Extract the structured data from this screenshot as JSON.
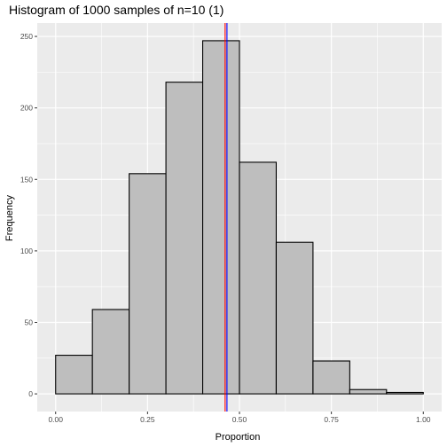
{
  "chart_data": {
    "type": "bar",
    "title": "Histogram of 1000 samples of n=10 (1)",
    "xlabel": "Proportion",
    "ylabel": "Frequency",
    "bins": [
      {
        "x0": 0.0,
        "x1": 0.1,
        "count": 27
      },
      {
        "x0": 0.1,
        "x1": 0.2,
        "count": 59
      },
      {
        "x0": 0.2,
        "x1": 0.3,
        "count": 154
      },
      {
        "x0": 0.3,
        "x1": 0.4,
        "count": 218
      },
      {
        "x0": 0.4,
        "x1": 0.5,
        "count": 247
      },
      {
        "x0": 0.5,
        "x1": 0.6,
        "count": 162
      },
      {
        "x0": 0.6,
        "x1": 0.7,
        "count": 106
      },
      {
        "x0": 0.7,
        "x1": 0.8,
        "count": 23
      },
      {
        "x0": 0.8,
        "x1": 0.9,
        "count": 3
      },
      {
        "x0": 0.9,
        "x1": 1.0,
        "count": 1
      }
    ],
    "xticks": [
      {
        "value": 0,
        "label": "0.00"
      },
      {
        "value": 0.25,
        "label": "0.25"
      },
      {
        "value": 0.5,
        "label": "0.50"
      },
      {
        "value": 0.75,
        "label": "0.75"
      },
      {
        "value": 1,
        "label": "1.00"
      }
    ],
    "yticks": [
      {
        "value": 0,
        "label": "0"
      },
      {
        "value": 50,
        "label": "50"
      },
      {
        "value": 100,
        "label": "100"
      },
      {
        "value": 150,
        "label": "150"
      },
      {
        "value": 200,
        "label": "200"
      },
      {
        "value": 250,
        "label": "250"
      }
    ],
    "vlines": [
      {
        "x": 0.461,
        "color": "#ff0000"
      },
      {
        "x": 0.466,
        "color": "#0000ff"
      }
    ],
    "xlim": [
      -0.05,
      1.05
    ],
    "ylim": [
      -12.35,
      259.35
    ],
    "grid": true,
    "colors": {
      "bar_fill": "#bebebe",
      "bar_stroke": "#000000",
      "panel_bg": "#ebebeb",
      "grid_major": "#ffffff",
      "tick_label": "#4d4d4d"
    }
  }
}
